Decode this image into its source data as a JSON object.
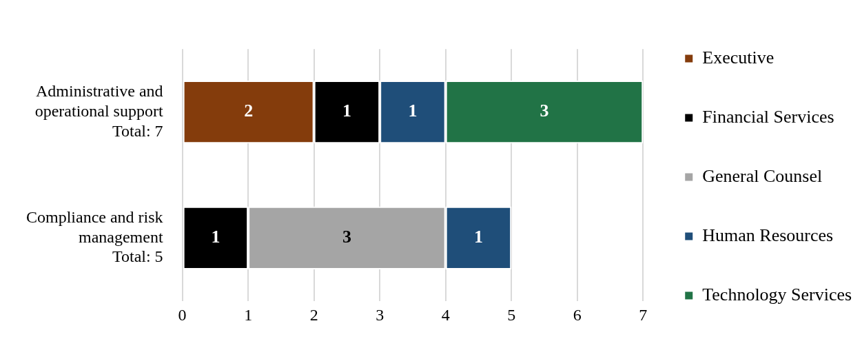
{
  "chart_data": {
    "type": "bar",
    "orientation": "horizontal",
    "stacked": true,
    "categories": [
      "Administrative and\noperational support\nTotal: 7",
      "Compliance and risk\nmanagement\nTotal: 5"
    ],
    "series": [
      {
        "name": "Executive",
        "color": "#843c0c",
        "values": [
          2,
          null
        ]
      },
      {
        "name": "Financial Services",
        "color": "#000000",
        "values": [
          1,
          1
        ]
      },
      {
        "name": "General Counsel",
        "color": "#a5a5a5",
        "values": [
          null,
          3
        ]
      },
      {
        "name": "Human Resources",
        "color": "#1f4e79",
        "values": [
          1,
          1
        ]
      },
      {
        "name": "Technology Services",
        "color": "#217346",
        "values": [
          3,
          null
        ]
      }
    ],
    "xlim": [
      0,
      7
    ],
    "xticks": [
      0,
      1,
      2,
      3,
      4,
      5,
      6,
      7
    ],
    "grid": "x",
    "legend": "right",
    "data_labels": true
  }
}
